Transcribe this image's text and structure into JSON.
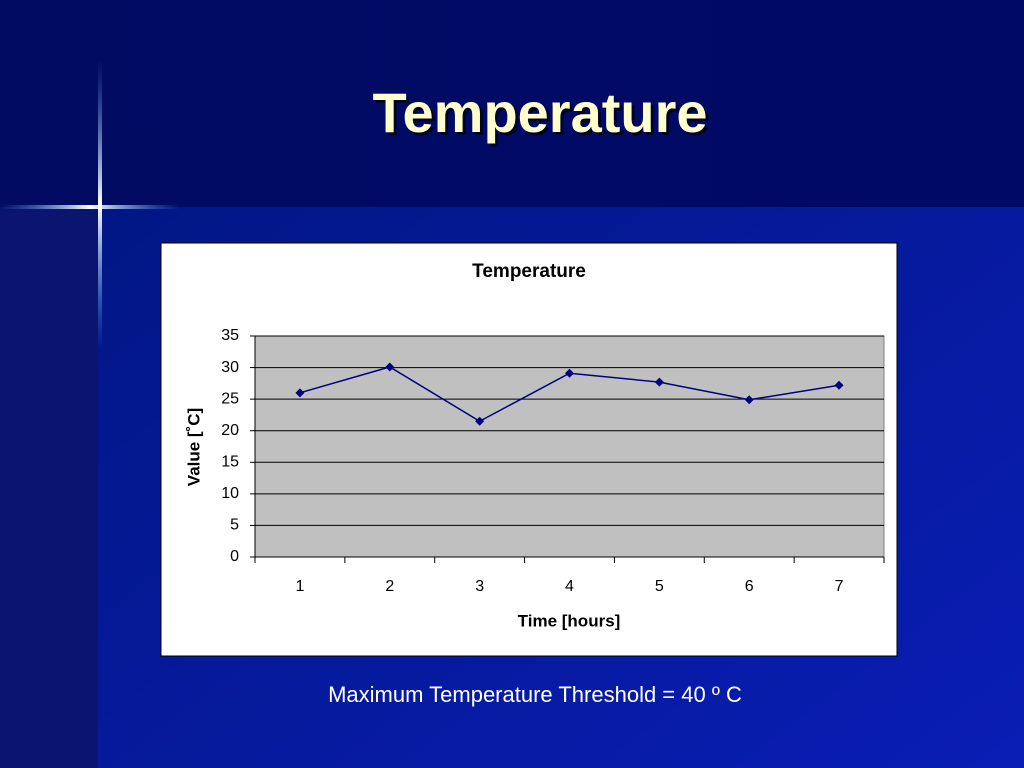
{
  "slide_title": "Temperature",
  "chart_data": {
    "type": "line",
    "title": "Temperature",
    "x_label": "Time [hours]",
    "y_label": "Value [˚C]",
    "categories": [
      "1",
      "2",
      "3",
      "4",
      "5",
      "6",
      "7"
    ],
    "values": [
      26,
      30.1,
      21.5,
      29.1,
      27.7,
      24.9,
      27.2
    ],
    "color": "#000080",
    "plot_background": "#c0c0c0",
    "ylim": [
      0,
      35
    ],
    "yticks": [
      0,
      5,
      10,
      15,
      20,
      25,
      30,
      35
    ],
    "grid": true
  },
  "caption": "Maximum Temperature Threshold = 40 º C"
}
